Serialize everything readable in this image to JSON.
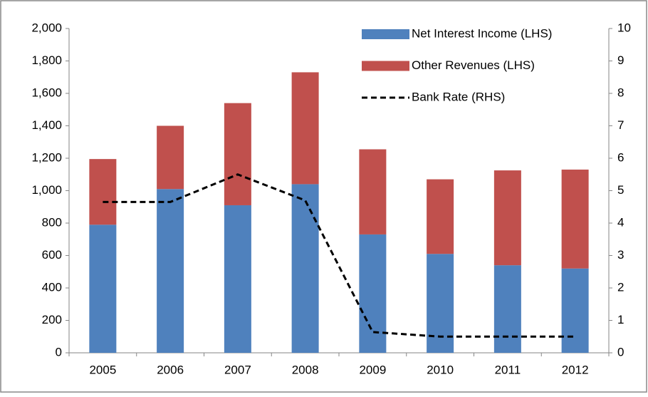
{
  "chart_data": {
    "type": "bar",
    "categories": [
      "2005",
      "2006",
      "2007",
      "2008",
      "2009",
      "2010",
      "2011",
      "2012"
    ],
    "stacked": true,
    "series": [
      {
        "name": "Net Interest Income (LHS)",
        "color": "#4f81bd",
        "type": "bar",
        "values": [
          790,
          1010,
          910,
          1040,
          730,
          610,
          540,
          520
        ]
      },
      {
        "name": "Other Revenues (LHS)",
        "color": "#c0504d",
        "type": "bar",
        "values": [
          405,
          390,
          630,
          690,
          525,
          460,
          585,
          610
        ]
      },
      {
        "name": "Bank Rate (RHS)",
        "color": "#000000",
        "type": "line",
        "dashed": true,
        "axis": "y2",
        "values": [
          4.65,
          4.65,
          5.5,
          4.7,
          0.64,
          0.5,
          0.5,
          0.5
        ]
      }
    ],
    "ylim": [
      0,
      2000
    ],
    "yticks": [
      0,
      200,
      400,
      600,
      800,
      {
        "value": 1000,
        "label": "1,000"
      },
      {
        "value": 1200,
        "label": "1,200"
      },
      {
        "value": 1400,
        "label": "1,400"
      },
      {
        "value": 1600,
        "label": "1,600"
      },
      {
        "value": 1800,
        "label": "1,800"
      },
      {
        "value": 2000,
        "label": "2,000"
      }
    ],
    "y2lim": [
      0,
      10
    ],
    "y2ticks": [
      0,
      1,
      2,
      3,
      4,
      5,
      6,
      7,
      8,
      9,
      10
    ],
    "grid": false,
    "legend": "top-right"
  }
}
